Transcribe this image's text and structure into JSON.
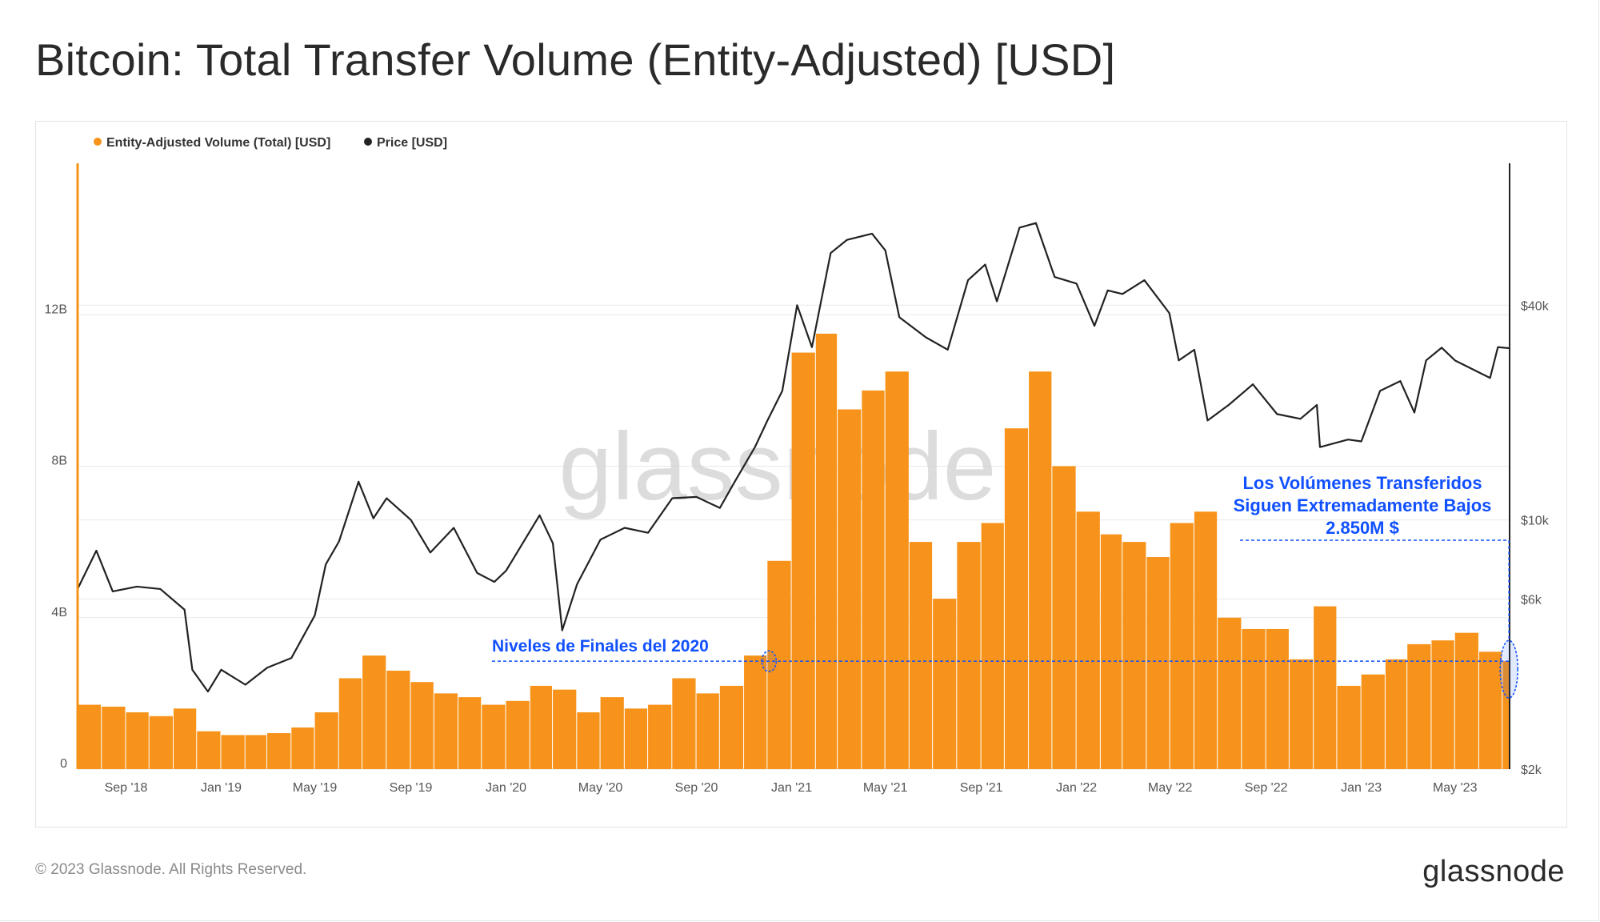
{
  "header": {
    "title": "Bitcoin: Total Transfer Volume (Entity-Adjusted) [USD]"
  },
  "footer": {
    "copyright": "© 2023 Glassnode. All Rights Reserved.",
    "logo_text": "glassnode"
  },
  "watermark": "glassnode",
  "colors": {
    "volume": "#f7931a",
    "price": "#222222",
    "annotation": "#1050ff",
    "grid": "#e9e9e9"
  },
  "chart_data": {
    "type": "bar",
    "title": "Bitcoin: Total Transfer Volume (Entity-Adjusted) [USD]",
    "legend": {
      "placement": "top-left",
      "items": [
        {
          "name": "Entity-Adjusted Volume (Total) [USD]",
          "color": "#f7931a",
          "marker": "dot"
        },
        {
          "name": "Price [USD]",
          "color": "#222222",
          "marker": "dot"
        }
      ]
    },
    "x_range": [
      "2018-07-01",
      "2023-07-10"
    ],
    "x_ticks": [
      {
        "date": "2018-09-01",
        "label": "Sep '18"
      },
      {
        "date": "2019-01-01",
        "label": "Jan '19"
      },
      {
        "date": "2019-05-01",
        "label": "May '19"
      },
      {
        "date": "2019-09-01",
        "label": "Sep '19"
      },
      {
        "date": "2020-01-01",
        "label": "Jan '20"
      },
      {
        "date": "2020-05-01",
        "label": "May '20"
      },
      {
        "date": "2020-09-01",
        "label": "Sep '20"
      },
      {
        "date": "2021-01-01",
        "label": "Jan '21"
      },
      {
        "date": "2021-05-01",
        "label": "May '21"
      },
      {
        "date": "2021-09-01",
        "label": "Sep '21"
      },
      {
        "date": "2022-01-01",
        "label": "Jan '22"
      },
      {
        "date": "2022-05-01",
        "label": "May '22"
      },
      {
        "date": "2022-09-01",
        "label": "Sep '22"
      },
      {
        "date": "2023-01-01",
        "label": "Jan '23"
      },
      {
        "date": "2023-05-01",
        "label": "May '23"
      }
    ],
    "y_left": {
      "label": "",
      "range": [
        0,
        16000000000
      ],
      "ticks": [
        {
          "value": 0,
          "label": "0"
        },
        {
          "value": 4000000000,
          "label": "4B"
        },
        {
          "value": 8000000000,
          "label": "8B"
        },
        {
          "value": 12000000000,
          "label": "12B"
        }
      ]
    },
    "y_right": {
      "label": "",
      "scale": "log",
      "range": [
        2000,
        100000
      ],
      "ticks": [
        {
          "value": 2000,
          "label": "$2k"
        },
        {
          "value": 6000,
          "label": "$6k"
        },
        {
          "value": 10000,
          "label": "$10k"
        },
        {
          "value": 40000,
          "label": "$40k"
        }
      ]
    },
    "grid": true,
    "series": [
      {
        "name": "Entity-Adjusted Volume (Total) [USD]",
        "type": "bar",
        "axis": "left",
        "points": [
          [
            "2018-07-01",
            1700000000
          ],
          [
            "2018-08-01",
            1650000000
          ],
          [
            "2018-09-01",
            1500000000
          ],
          [
            "2018-10-01",
            1400000000
          ],
          [
            "2018-11-01",
            1600000000
          ],
          [
            "2018-12-01",
            1000000000
          ],
          [
            "2019-01-01",
            900000000
          ],
          [
            "2019-02-01",
            900000000
          ],
          [
            "2019-03-01",
            950000000
          ],
          [
            "2019-04-01",
            1100000000
          ],
          [
            "2019-05-01",
            1500000000
          ],
          [
            "2019-06-01",
            2400000000
          ],
          [
            "2019-07-01",
            3000000000
          ],
          [
            "2019-08-01",
            2600000000
          ],
          [
            "2019-09-01",
            2300000000
          ],
          [
            "2019-10-01",
            2000000000
          ],
          [
            "2019-11-01",
            1900000000
          ],
          [
            "2019-12-01",
            1700000000
          ],
          [
            "2020-01-01",
            1800000000
          ],
          [
            "2020-02-01",
            2200000000
          ],
          [
            "2020-03-01",
            2100000000
          ],
          [
            "2020-04-01",
            1500000000
          ],
          [
            "2020-05-01",
            1900000000
          ],
          [
            "2020-06-01",
            1600000000
          ],
          [
            "2020-07-01",
            1700000000
          ],
          [
            "2020-08-01",
            2400000000
          ],
          [
            "2020-09-01",
            2000000000
          ],
          [
            "2020-10-01",
            2200000000
          ],
          [
            "2020-11-01",
            3000000000
          ],
          [
            "2020-12-01",
            5500000000
          ],
          [
            "2021-01-01",
            11000000000
          ],
          [
            "2021-02-01",
            11500000000
          ],
          [
            "2021-03-01",
            9500000000
          ],
          [
            "2021-04-01",
            10000000000
          ],
          [
            "2021-05-01",
            10500000000
          ],
          [
            "2021-06-01",
            6000000000
          ],
          [
            "2021-07-01",
            4500000000
          ],
          [
            "2021-08-01",
            6000000000
          ],
          [
            "2021-09-01",
            6500000000
          ],
          [
            "2021-10-01",
            9000000000
          ],
          [
            "2021-11-01",
            10500000000
          ],
          [
            "2021-12-01",
            8000000000
          ],
          [
            "2022-01-01",
            6800000000
          ],
          [
            "2022-02-01",
            6200000000
          ],
          [
            "2022-03-01",
            6000000000
          ],
          [
            "2022-04-01",
            5600000000
          ],
          [
            "2022-05-01",
            6500000000
          ],
          [
            "2022-06-01",
            6800000000
          ],
          [
            "2022-07-01",
            4000000000
          ],
          [
            "2022-08-01",
            3700000000
          ],
          [
            "2022-09-01",
            3700000000
          ],
          [
            "2022-10-01",
            2900000000
          ],
          [
            "2022-11-01",
            4300000000
          ],
          [
            "2022-12-01",
            2200000000
          ],
          [
            "2023-01-01",
            2500000000
          ],
          [
            "2023-02-01",
            2900000000
          ],
          [
            "2023-03-01",
            3300000000
          ],
          [
            "2023-04-01",
            3400000000
          ],
          [
            "2023-05-01",
            3600000000
          ],
          [
            "2023-06-01",
            3100000000
          ],
          [
            "2023-07-01",
            2850000000
          ]
        ]
      },
      {
        "name": "Price [USD]",
        "type": "line",
        "axis": "right",
        "points": [
          [
            "2018-07-01",
            6400
          ],
          [
            "2018-07-25",
            8200
          ],
          [
            "2018-08-15",
            6300
          ],
          [
            "2018-09-15",
            6500
          ],
          [
            "2018-10-15",
            6400
          ],
          [
            "2018-11-15",
            5600
          ],
          [
            "2018-11-25",
            3800
          ],
          [
            "2018-12-15",
            3300
          ],
          [
            "2019-01-01",
            3800
          ],
          [
            "2019-02-01",
            3450
          ],
          [
            "2019-03-01",
            3850
          ],
          [
            "2019-04-01",
            4100
          ],
          [
            "2019-05-01",
            5400
          ],
          [
            "2019-05-15",
            7500
          ],
          [
            "2019-06-01",
            8700
          ],
          [
            "2019-06-26",
            12800
          ],
          [
            "2019-07-15",
            10100
          ],
          [
            "2019-08-01",
            11500
          ],
          [
            "2019-09-01",
            10000
          ],
          [
            "2019-09-26",
            8100
          ],
          [
            "2019-10-26",
            9500
          ],
          [
            "2019-11-25",
            7100
          ],
          [
            "2019-12-17",
            6700
          ],
          [
            "2020-01-01",
            7200
          ],
          [
            "2020-02-13",
            10300
          ],
          [
            "2020-03-01",
            8600
          ],
          [
            "2020-03-13",
            4900
          ],
          [
            "2020-04-01",
            6600
          ],
          [
            "2020-05-01",
            8800
          ],
          [
            "2020-06-01",
            9500
          ],
          [
            "2020-07-01",
            9200
          ],
          [
            "2020-08-01",
            11500
          ],
          [
            "2020-09-01",
            11600
          ],
          [
            "2020-10-01",
            10800
          ],
          [
            "2020-10-21",
            12900
          ],
          [
            "2020-11-15",
            16000
          ],
          [
            "2020-12-01",
            19000
          ],
          [
            "2020-12-20",
            23000
          ],
          [
            "2021-01-08",
            40000
          ],
          [
            "2021-01-27",
            30500
          ],
          [
            "2021-02-20",
            56000
          ],
          [
            "2021-03-13",
            61000
          ],
          [
            "2021-04-14",
            63500
          ],
          [
            "2021-05-01",
            57000
          ],
          [
            "2021-05-19",
            37000
          ],
          [
            "2021-06-22",
            32500
          ],
          [
            "2021-07-20",
            30000
          ],
          [
            "2021-08-15",
            47000
          ],
          [
            "2021-09-06",
            52000
          ],
          [
            "2021-09-21",
            41000
          ],
          [
            "2021-10-20",
            66000
          ],
          [
            "2021-11-10",
            68000
          ],
          [
            "2021-12-04",
            48000
          ],
          [
            "2022-01-01",
            46000
          ],
          [
            "2022-01-24",
            35000
          ],
          [
            "2022-02-10",
            44000
          ],
          [
            "2022-03-01",
            43000
          ],
          [
            "2022-03-29",
            47000
          ],
          [
            "2022-04-30",
            38000
          ],
          [
            "2022-05-12",
            28000
          ],
          [
            "2022-06-01",
            30000
          ],
          [
            "2022-06-18",
            19000
          ],
          [
            "2022-07-15",
            21000
          ],
          [
            "2022-08-15",
            24000
          ],
          [
            "2022-09-15",
            19800
          ],
          [
            "2022-10-15",
            19200
          ],
          [
            "2022-11-05",
            21000
          ],
          [
            "2022-11-09",
            16000
          ],
          [
            "2022-12-15",
            16800
          ],
          [
            "2023-01-01",
            16600
          ],
          [
            "2023-01-25",
            23000
          ],
          [
            "2023-02-20",
            24500
          ],
          [
            "2023-03-10",
            20000
          ],
          [
            "2023-03-25",
            28000
          ],
          [
            "2023-04-14",
            30400
          ],
          [
            "2023-05-01",
            28000
          ],
          [
            "2023-06-15",
            25000
          ],
          [
            "2023-06-25",
            30500
          ],
          [
            "2023-07-10",
            30300
          ]
        ]
      }
    ],
    "annotations": [
      {
        "text": "Niveles de Finales del 2020",
        "date": "2020-12-01",
        "value": 2850000000,
        "color": "#1050ff"
      },
      {
        "lines": [
          "Los Volúmenes Transferidos",
          "Siguen Extremadamente Bajos",
          "2.850M $"
        ],
        "date": "2023-07-01",
        "value": 2850000000,
        "color": "#1050ff"
      }
    ]
  }
}
